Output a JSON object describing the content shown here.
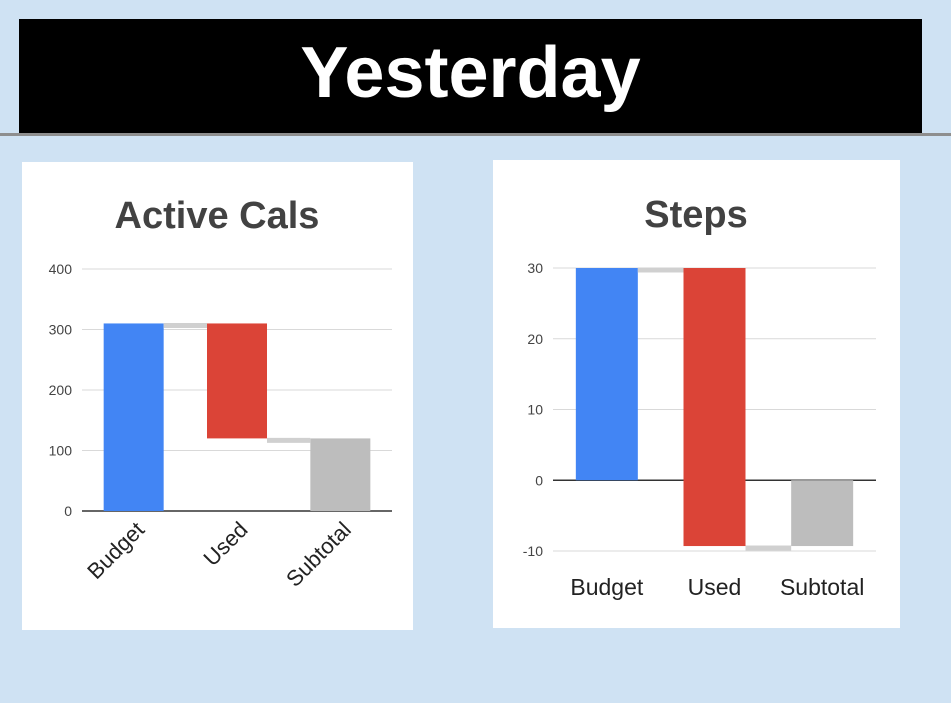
{
  "header": {
    "title": "Yesterday"
  },
  "chart_data": [
    {
      "type": "waterfall",
      "title": "Active Cals",
      "categories": [
        "Budget",
        "Used",
        "Subtotal"
      ],
      "steps": [
        {
          "label": "Budget",
          "start": 0,
          "end": 310,
          "color": "#4285f4"
        },
        {
          "label": "Used",
          "start": 310,
          "end": 120,
          "color": "#db4437"
        },
        {
          "label": "Subtotal",
          "start": 0,
          "end": 120,
          "color": "#bdbdbd"
        }
      ],
      "ylim": [
        0,
        400
      ],
      "yticks": [
        0,
        100,
        200,
        300,
        400
      ],
      "grid": true,
      "xlabel_rotation": -45
    },
    {
      "type": "waterfall",
      "title": "Steps",
      "categories": [
        "Budget",
        "Used",
        "Subtotal"
      ],
      "steps": [
        {
          "label": "Budget",
          "start": 0,
          "end": 30,
          "color": "#4285f4"
        },
        {
          "label": "Used",
          "start": 30,
          "end": -9.3,
          "color": "#db4437"
        },
        {
          "label": "Subtotal",
          "start": 0,
          "end": -9.3,
          "color": "#bdbdbd"
        }
      ],
      "ylim": [
        -10,
        30
      ],
      "yticks": [
        -10,
        0,
        10,
        20,
        30
      ],
      "grid": true,
      "xlabel_rotation": 0
    }
  ]
}
